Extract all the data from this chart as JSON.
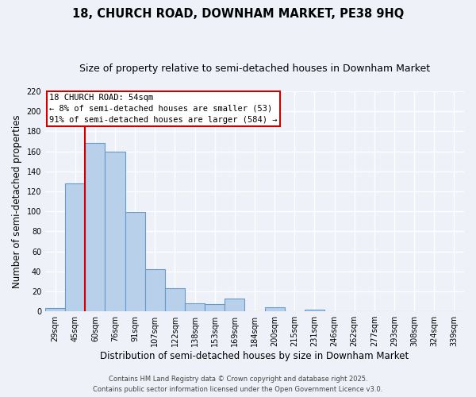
{
  "title_line1": "18, CHURCH ROAD, DOWNHAM MARKET, PE38 9HQ",
  "title_line2": "Size of property relative to semi-detached houses in Downham Market",
  "categories": [
    "29sqm",
    "45sqm",
    "60sqm",
    "76sqm",
    "91sqm",
    "107sqm",
    "122sqm",
    "138sqm",
    "153sqm",
    "169sqm",
    "184sqm",
    "200sqm",
    "215sqm",
    "231sqm",
    "246sqm",
    "262sqm",
    "277sqm",
    "293sqm",
    "308sqm",
    "324sqm",
    "339sqm"
  ],
  "values": [
    3,
    128,
    168,
    160,
    99,
    42,
    23,
    8,
    7,
    13,
    0,
    4,
    0,
    2,
    0,
    0,
    0,
    0,
    0,
    0,
    0
  ],
  "bar_color": "#b8d0ea",
  "bar_edge_color": "#6699cc",
  "xlabel": "Distribution of semi-detached houses by size in Downham Market",
  "ylabel": "Number of semi-detached properties",
  "ylim": [
    0,
    220
  ],
  "yticks": [
    0,
    20,
    40,
    60,
    80,
    100,
    120,
    140,
    160,
    180,
    200,
    220
  ],
  "vline_x": 1.5,
  "vline_color": "#cc0000",
  "annotation_title": "18 CHURCH ROAD: 54sqm",
  "annotation_line1": "← 8% of semi-detached houses are smaller (53)",
  "annotation_line2": "91% of semi-detached houses are larger (584) →",
  "annotation_box_color": "#cc0000",
  "background_color": "#eef2f8",
  "plot_bg_color": "#eef2f8",
  "grid_color": "#ffffff",
  "footer_line1": "Contains HM Land Registry data © Crown copyright and database right 2025.",
  "footer_line2": "Contains public sector information licensed under the Open Government Licence v3.0.",
  "title_fontsize": 10.5,
  "subtitle_fontsize": 9,
  "axis_label_fontsize": 8.5,
  "tick_fontsize": 7,
  "annotation_fontsize": 7.5,
  "footer_fontsize": 6
}
